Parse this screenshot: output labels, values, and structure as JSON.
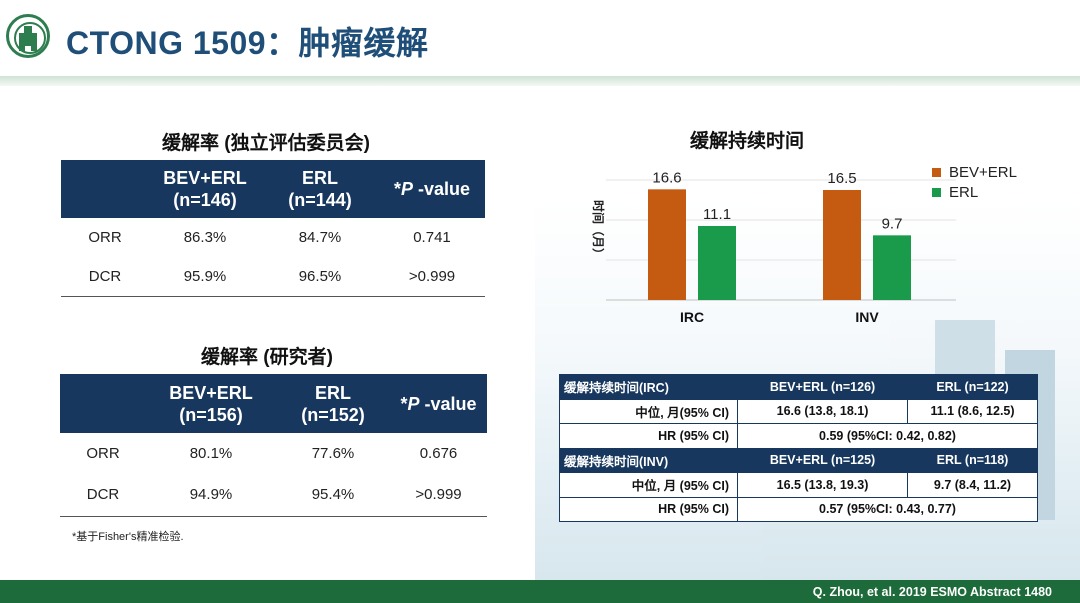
{
  "header": {
    "title": "CTONG 1509：肿瘤缓解"
  },
  "left": {
    "table1": {
      "title": "缓解率 (独立评估委员会)",
      "col1": [
        "BEV+ERL",
        "(n=146)"
      ],
      "col2": [
        "ERL",
        "(n=144)"
      ],
      "col3_prefix": "*",
      "col3_p": "P",
      "col3_suffix": " -value",
      "rows": [
        {
          "label": "ORR",
          "v1": "86.3%",
          "v2": "84.7%",
          "p": "0.741"
        },
        {
          "label": "DCR",
          "v1": "95.9%",
          "v2": "96.5%",
          "p": ">0.999"
        }
      ]
    },
    "table2": {
      "title": "缓解率 (研究者)",
      "col1": [
        "BEV+ERL",
        "(n=156)"
      ],
      "col2": [
        "ERL",
        "(n=152)"
      ],
      "col3_prefix": "*",
      "col3_p": "P",
      "col3_suffix": " -value",
      "rows": [
        {
          "label": "ORR",
          "v1": "80.1%",
          "v2": "77.6%",
          "p": "0.676"
        },
        {
          "label": "DCR",
          "v1": "94.9%",
          "v2": "95.4%",
          "p": ">0.999"
        }
      ]
    },
    "footnote": "*基于Fisher's精准检验."
  },
  "chart_data": {
    "type": "bar",
    "title": "缓解持续时间",
    "ylabel": "时间（月）",
    "categories": [
      "IRC",
      "INV"
    ],
    "series": [
      {
        "name": "BEV+ERL",
        "values": [
          16.6,
          16.5
        ],
        "color": "#c55a11"
      },
      {
        "name": "ERL",
        "values": [
          11.1,
          9.7
        ],
        "color": "#1a9b4b"
      }
    ],
    "ylim": [
      0,
      18
    ],
    "grid": true,
    "legend": "top-right"
  },
  "dtable": {
    "irc": {
      "label": "缓解持续时间(IRC)",
      "h1": "BEV+ERL  (n=126)",
      "h2": "ERL  (n=122)",
      "median_label": "中位, 月(95% CI)",
      "median1": "16.6 (13.8, 18.1)",
      "median2": "11.1 (8.6, 12.5)",
      "hr_label": "HR (95% CI)",
      "hr": "0.59 (95%CI: 0.42, 0.82)"
    },
    "inv": {
      "label": "缓解持续时间(INV)",
      "h1": "BEV+ERL  (n=125)",
      "h2": "ERL  (n=118)",
      "median_label": "中位, 月 (95% CI)",
      "median1": "16.5 (13.8, 19.3)",
      "median2": "9.7 (8.4, 11.2)",
      "hr_label": "HR (95% CI)",
      "hr": "0.57 (95%CI: 0.43, 0.77)"
    }
  },
  "footer": {
    "citation": "Q. Zhou, et al. 2019 ESMO Abstract 1480"
  }
}
